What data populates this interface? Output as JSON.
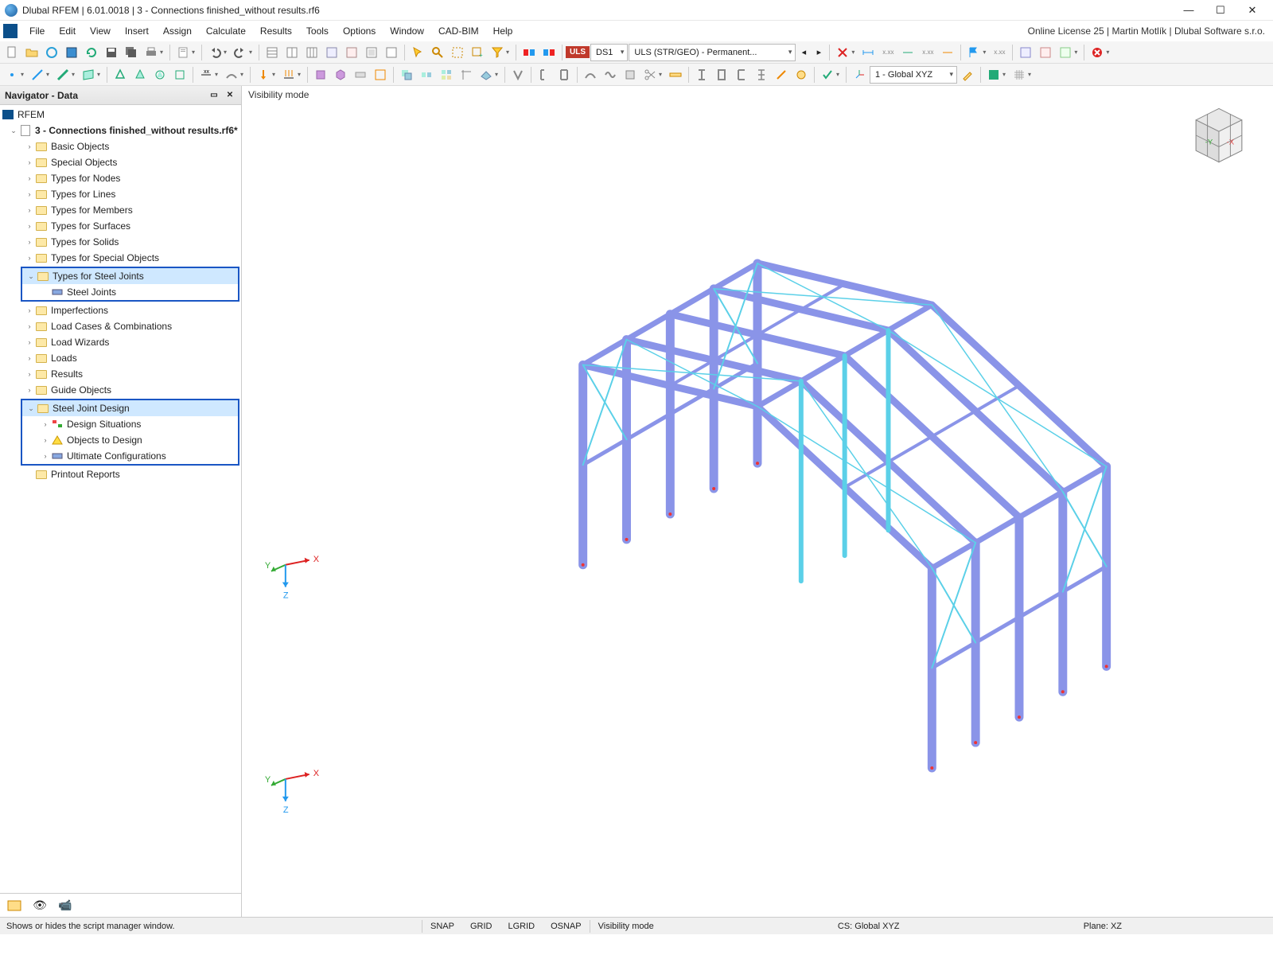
{
  "window": {
    "title": "Dlubal RFEM | 6.01.0018 | 3 - Connections finished_without results.rf6",
    "min": "—",
    "max": "☐",
    "close": "✕"
  },
  "menu": {
    "items": [
      "File",
      "Edit",
      "View",
      "Insert",
      "Assign",
      "Calculate",
      "Results",
      "Tools",
      "Options",
      "Window",
      "CAD-BIM",
      "Help"
    ],
    "license": "Online License 25 | Martin Motlík | Dlubal Software s.r.o."
  },
  "toolbar1": {
    "combo_ds": "DS1",
    "combo_uls": "ULS (STR/GEO) - Permanent...",
    "combo_cs": "1 - Global XYZ"
  },
  "navigator": {
    "title": "Navigator - Data",
    "root": "RFEM",
    "file": "3 - Connections finished_without results.rf6*",
    "items": [
      "Basic Objects",
      "Special Objects",
      "Types for Nodes",
      "Types for Lines",
      "Types for Members",
      "Types for Surfaces",
      "Types for Solids",
      "Types for Special Objects"
    ],
    "highlighted1_parent": "Types for Steel Joints",
    "highlighted1_child": "Steel Joints",
    "items2": [
      "Imperfections",
      "Load Cases & Combinations",
      "Load Wizards",
      "Loads",
      "Results",
      "Guide Objects"
    ],
    "highlighted2_parent": "Steel Joint Design",
    "highlighted2_children": [
      "Design Situations",
      "Objects to Design",
      "Ultimate Configurations"
    ],
    "last": "Printout Reports"
  },
  "viewport": {
    "visibility_label": "Visibility mode",
    "axis": {
      "x": "X",
      "y": "Y",
      "z": "Z"
    },
    "cube": {
      "neg_y": "-Y",
      "neg_x": "-X"
    },
    "structure_color": "#8a94e8",
    "brace_color": "#5bd0e8"
  },
  "statusbar": {
    "hint": "Shows or hides the script manager window.",
    "snap": "SNAP",
    "grid": "GRID",
    "lgrid": "LGRID",
    "osnap": "OSNAP",
    "mode": "Visibility mode",
    "cs": "CS: Global XYZ",
    "plane": "Plane: XZ"
  }
}
